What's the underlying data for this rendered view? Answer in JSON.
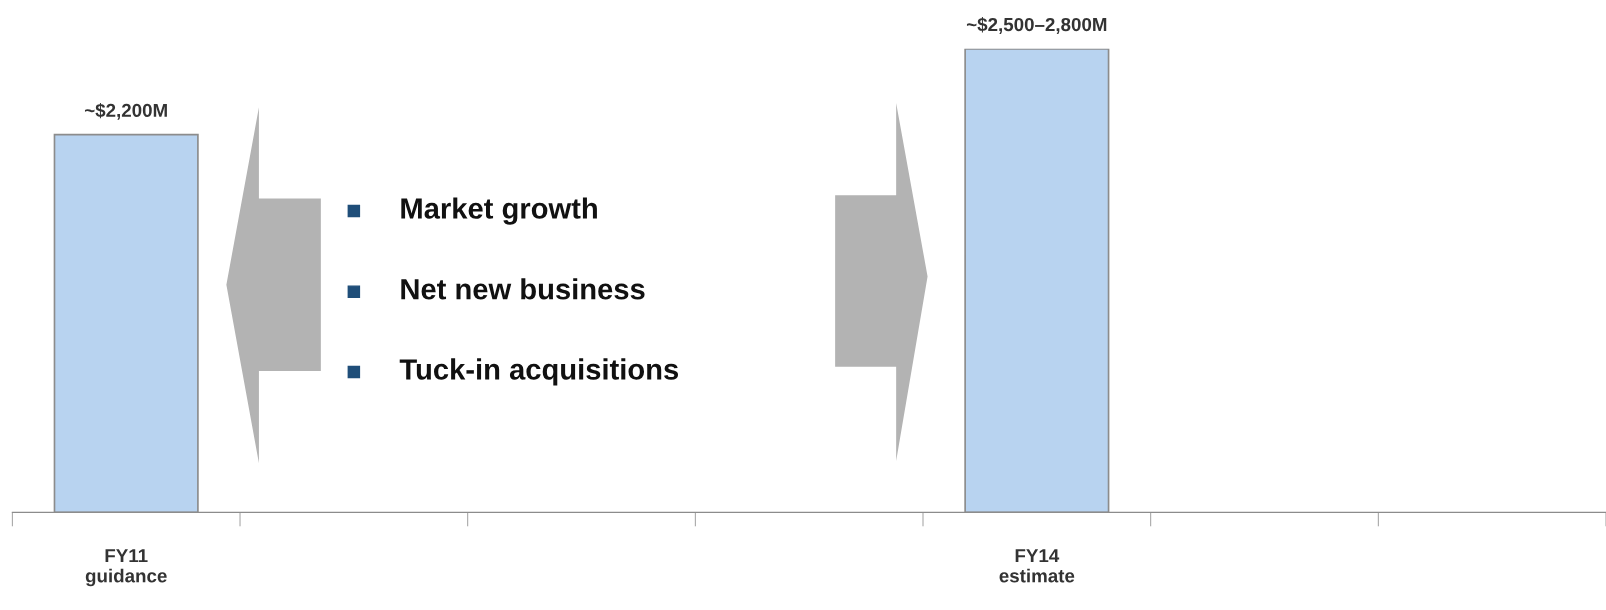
{
  "chart_data": {
    "type": "bar",
    "tick_labels": "x",
    "categories": [
      "FY11\nguidance",
      null,
      null,
      null,
      "FY14\nestimate",
      null,
      null
    ],
    "values": [
      2200,
      null,
      null,
      null,
      2700,
      null,
      null
    ],
    "value_labels": [
      "~$2,200M",
      null,
      null,
      null,
      "~$2,500–2,800M",
      null,
      null
    ],
    "color": "#b8d3f0",
    "annotations": [
      "Market growth",
      "Net new business",
      "Tuck-in acquisitions"
    ],
    "grid": false,
    "legend": false
  }
}
